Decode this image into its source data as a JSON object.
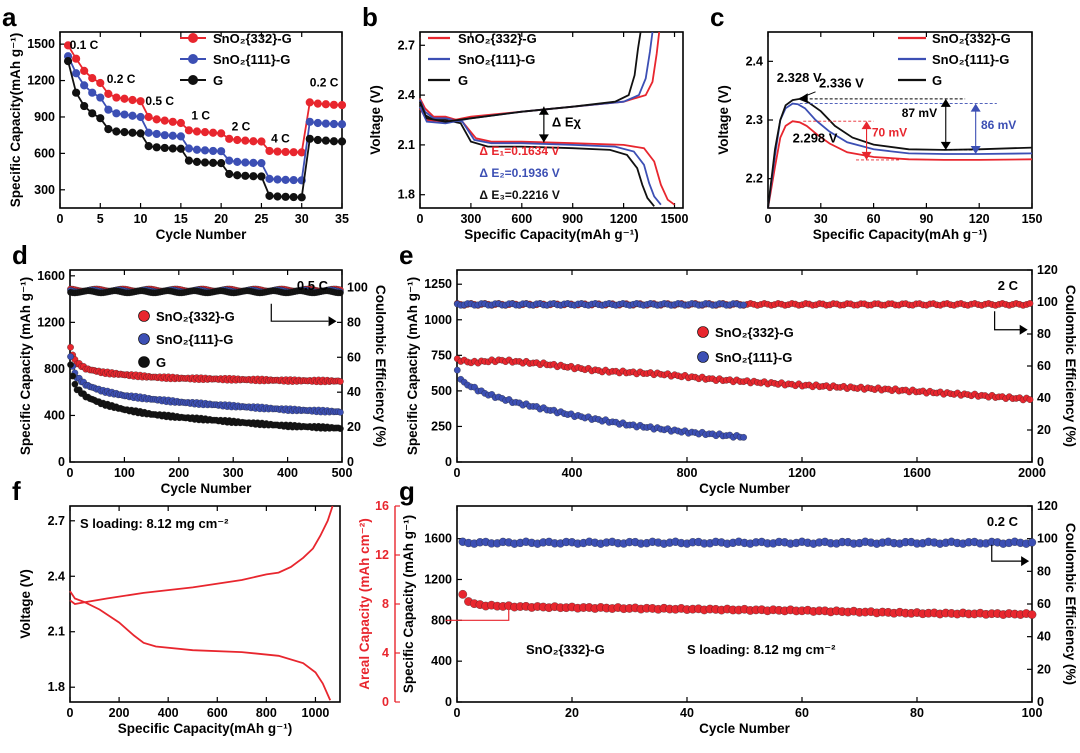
{
  "colors": {
    "red": "#e8262e",
    "blue": "#3c4fb4",
    "black": "#111111"
  },
  "chart_data": [
    {
      "id": "a",
      "type": "line",
      "letter": "a",
      "xlabel": "Cycle Number",
      "ylabel": "Specific Capacity(mAh g⁻¹)",
      "xlim": [
        0,
        35
      ],
      "ylim": [
        150,
        1600
      ],
      "xticks": [
        0,
        5,
        10,
        15,
        20,
        25,
        30,
        35
      ],
      "yticks": [
        300,
        600,
        900,
        1200,
        1500
      ],
      "legend": [
        "SnO₂{332}-G",
        "SnO₂{111}-G",
        "G"
      ],
      "rate_labels": [
        {
          "text": "0.1 C",
          "x": 1.2,
          "y": 1460
        },
        {
          "text": "0.2 C",
          "x": 5.8,
          "y": 1180
        },
        {
          "text": "0.5 C",
          "x": 10.6,
          "y": 1000
        },
        {
          "text": "1 C",
          "x": 16.3,
          "y": 880
        },
        {
          "text": "2 C",
          "x": 21.3,
          "y": 790
        },
        {
          "text": "4 C",
          "x": 26.2,
          "y": 690
        },
        {
          "text": "0.2 C",
          "x": 31.0,
          "y": 1150
        }
      ],
      "series": [
        {
          "name": "SnO₂{332}-G",
          "color": "red",
          "values": [
            1490,
            1380,
            1280,
            1220,
            1180,
            1090,
            1060,
            1050,
            1040,
            1030,
            900,
            880,
            870,
            860,
            850,
            790,
            780,
            775,
            770,
            765,
            720,
            710,
            705,
            700,
            698,
            620,
            615,
            612,
            610,
            608,
            1020,
            1010,
            1005,
            1000,
            998
          ]
        },
        {
          "name": "SnO₂{111}-G",
          "color": "blue",
          "values": [
            1400,
            1260,
            1160,
            1100,
            1060,
            960,
            930,
            920,
            910,
            900,
            770,
            760,
            750,
            745,
            740,
            640,
            630,
            625,
            620,
            618,
            540,
            530,
            525,
            522,
            520,
            390,
            385,
            382,
            380,
            378,
            860,
            850,
            845,
            842,
            840
          ]
        },
        {
          "name": "G",
          "color": "black",
          "values": [
            1360,
            1100,
            990,
            930,
            890,
            800,
            780,
            775,
            770,
            765,
            660,
            650,
            645,
            640,
            638,
            540,
            530,
            525,
            522,
            520,
            430,
            420,
            415,
            412,
            410,
            250,
            245,
            242,
            240,
            238,
            720,
            710,
            705,
            700,
            698
          ]
        }
      ]
    },
    {
      "id": "b",
      "type": "line",
      "letter": "b",
      "xlabel": "Specific Capacity(mAh g⁻¹)",
      "ylabel": "Voltage (V)",
      "xlim": [
        0,
        1550
      ],
      "ylim": [
        1.72,
        2.78
      ],
      "xticks": [
        0,
        300,
        600,
        900,
        1200,
        1500
      ],
      "yticks": [
        1.8,
        2.1,
        2.4,
        2.7
      ],
      "legend": [
        "SnO₂{332}-G",
        "SnO₂{111}-G",
        "G"
      ],
      "delta_label": "Δ Eχ",
      "annotations": [
        {
          "text": "Δ E₁=0.1634 V",
          "color": "red"
        },
        {
          "text": "Δ E₂=0.1936 V",
          "color": "blue"
        },
        {
          "text": "Δ E₃=0.2216 V",
          "color": "black"
        }
      ],
      "series": [
        {
          "name": "SnO₂{332}-G",
          "color": "red",
          "curve": "discharge",
          "x": [
            0,
            30,
            80,
            150,
            250,
            330,
            420,
            600,
            900,
            1200,
            1320,
            1380,
            1420,
            1460,
            1500
          ],
          "y": [
            2.38,
            2.32,
            2.27,
            2.27,
            2.24,
            2.14,
            2.12,
            2.12,
            2.11,
            2.1,
            2.08,
            2.0,
            1.86,
            1.77,
            1.74
          ]
        },
        {
          "name": "SnO₂{111}-G",
          "color": "blue",
          "curve": "discharge",
          "x": [
            0,
            30,
            80,
            150,
            250,
            320,
            420,
            600,
            900,
            1150,
            1260,
            1320,
            1350,
            1380,
            1420
          ],
          "y": [
            2.37,
            2.3,
            2.26,
            2.26,
            2.24,
            2.13,
            2.11,
            2.11,
            2.1,
            2.09,
            2.06,
            1.98,
            1.87,
            1.79,
            1.74
          ]
        },
        {
          "name": "G",
          "color": "black",
          "curve": "discharge",
          "x": [
            0,
            30,
            80,
            150,
            240,
            300,
            400,
            600,
            900,
            1120,
            1220,
            1280,
            1310,
            1340,
            1380
          ],
          "y": [
            2.36,
            2.28,
            2.25,
            2.25,
            2.23,
            2.12,
            2.09,
            2.09,
            2.08,
            2.07,
            2.04,
            1.96,
            1.86,
            1.78,
            1.73
          ]
        },
        {
          "name": "SnO₂{332}-G",
          "color": "red",
          "curve": "charge",
          "x": [
            0,
            40,
            150,
            300,
            600,
            900,
            1200,
            1330,
            1370,
            1395,
            1410
          ],
          "y": [
            2.32,
            2.25,
            2.24,
            2.27,
            2.3,
            2.33,
            2.36,
            2.4,
            2.48,
            2.65,
            2.78
          ]
        },
        {
          "name": "SnO₂{111}-G",
          "color": "blue",
          "curve": "charge",
          "x": [
            0,
            40,
            150,
            300,
            600,
            900,
            1200,
            1290,
            1330,
            1355,
            1370
          ],
          "y": [
            2.33,
            2.24,
            2.23,
            2.26,
            2.3,
            2.33,
            2.36,
            2.4,
            2.5,
            2.66,
            2.78
          ]
        },
        {
          "name": "G",
          "color": "black",
          "curve": "charge",
          "x": [
            0,
            40,
            150,
            300,
            600,
            900,
            1150,
            1230,
            1265,
            1285,
            1300
          ],
          "y": [
            2.36,
            2.26,
            2.24,
            2.26,
            2.3,
            2.33,
            2.36,
            2.4,
            2.52,
            2.68,
            2.78
          ]
        }
      ]
    },
    {
      "id": "c",
      "type": "line",
      "letter": "c",
      "xlabel": "Specific Capacity(mAh g⁻¹)",
      "ylabel": "Voltage (V)",
      "xlim": [
        0,
        150
      ],
      "ylim": [
        2.15,
        2.45
      ],
      "xticks": [
        0,
        30,
        60,
        90,
        120,
        150
      ],
      "yticks": [
        2.2,
        2.3,
        2.4
      ],
      "legend": [
        "SnO₂{332}-G",
        "SnO₂{111}-G",
        "G"
      ],
      "labels": {
        "blue_peak": "2.328 V",
        "black_peak": "2.336 V",
        "red_peak": "2.298 V",
        "mv87": "87 mV",
        "mv86": "86 mV",
        "mv70": "70 mV"
      },
      "series": [
        {
          "name": "SnO₂{332}-G",
          "color": "red",
          "x": [
            0,
            4,
            7,
            10,
            14,
            18,
            22,
            28,
            35,
            45,
            60,
            80,
            100,
            120,
            150
          ],
          "y": [
            2.15,
            2.22,
            2.27,
            2.29,
            2.298,
            2.296,
            2.29,
            2.275,
            2.26,
            2.245,
            2.237,
            2.233,
            2.232,
            2.232,
            2.233
          ]
        },
        {
          "name": "SnO₂{111}-G",
          "color": "blue",
          "x": [
            0,
            4,
            7,
            10,
            14,
            17,
            21,
            27,
            35,
            45,
            60,
            80,
            100,
            120,
            150
          ],
          "y": [
            2.15,
            2.24,
            2.3,
            2.32,
            2.328,
            2.327,
            2.32,
            2.3,
            2.28,
            2.262,
            2.25,
            2.243,
            2.242,
            2.242,
            2.243
          ]
        },
        {
          "name": "G",
          "color": "black",
          "x": [
            0,
            4,
            7,
            10,
            14,
            18,
            23,
            30,
            38,
            48,
            60,
            80,
            100,
            120,
            150
          ],
          "y": [
            2.15,
            2.25,
            2.3,
            2.325,
            2.334,
            2.336,
            2.33,
            2.315,
            2.29,
            2.27,
            2.258,
            2.25,
            2.249,
            2.25,
            2.253
          ]
        }
      ]
    },
    {
      "id": "d",
      "type": "scatter",
      "letter": "d",
      "xlabel": "Cycle Number",
      "ylabel": "Specific Capacity (mAh g⁻¹)",
      "y2label": "Coulombic Efficiency (%)",
      "xlim": [
        0,
        500
      ],
      "ylim": [
        0,
        1650
      ],
      "y2lim": [
        0,
        110
      ],
      "xticks": [
        0,
        100,
        200,
        300,
        400,
        500
      ],
      "yticks": [
        0,
        400,
        800,
        1200,
        1600
      ],
      "y2ticks": [
        0,
        20,
        40,
        60,
        80,
        100
      ],
      "rate": "0.5 C",
      "legend": [
        "SnO₂{332}-G",
        "SnO₂{111}-G",
        "G"
      ],
      "series": [
        {
          "name": "SnO₂{332}-G",
          "color": "red",
          "x": [
            1,
            10,
            30,
            60,
            100,
            150,
            200,
            300,
            400,
            500
          ],
          "y": [
            980,
            860,
            800,
            770,
            750,
            730,
            720,
            710,
            700,
            695
          ]
        },
        {
          "name": "SnO₂{111}-G",
          "color": "blue",
          "x": [
            1,
            10,
            30,
            60,
            100,
            150,
            200,
            300,
            400,
            500
          ],
          "y": [
            900,
            740,
            660,
            610,
            570,
            540,
            515,
            480,
            450,
            430
          ]
        },
        {
          "name": "G",
          "color": "black",
          "x": [
            1,
            10,
            30,
            60,
            100,
            150,
            200,
            300,
            400,
            500
          ],
          "y": [
            830,
            640,
            560,
            500,
            450,
            410,
            385,
            345,
            310,
            290
          ]
        }
      ],
      "efficiency": [
        {
          "color": "red",
          "value": 98.5
        },
        {
          "color": "blue",
          "value": 98.0
        },
        {
          "color": "black",
          "value": 97.5
        }
      ]
    },
    {
      "id": "e",
      "type": "scatter",
      "letter": "e",
      "xlabel": "Cycle Number",
      "ylabel": "Specific Capacity (mAh g⁻¹)",
      "y2label": "Coulombic Efficiency (%)",
      "xlim": [
        0,
        2000
      ],
      "ylim": [
        0,
        1350
      ],
      "y2lim": [
        0,
        120
      ],
      "xticks": [
        0,
        400,
        800,
        1200,
        1600,
        2000
      ],
      "yticks": [
        0,
        250,
        500,
        750,
        1000,
        1250
      ],
      "y2ticks": [
        0,
        20,
        40,
        60,
        80,
        100,
        120
      ],
      "rate": "2 C",
      "legend": [
        "SnO₂{332}-G",
        "SnO₂{111}-G"
      ],
      "series": [
        {
          "name": "SnO₂{332}-G",
          "color": "red",
          "x": [
            1,
            50,
            150,
            300,
            500,
            700,
            900,
            1200,
            1500,
            1800,
            2000
          ],
          "y": [
            720,
            700,
            715,
            690,
            640,
            620,
            580,
            540,
            510,
            470,
            440
          ]
        },
        {
          "name": "SnO₂{111}-G",
          "color": "blue",
          "x": [
            1,
            20,
            100,
            200,
            400,
            600,
            800,
            1000
          ],
          "y": [
            640,
            560,
            480,
            420,
            330,
            260,
            210,
            175
          ]
        }
      ],
      "efficiency": [
        {
          "color": "red",
          "x_end": 2000,
          "value": 98.5
        },
        {
          "color": "blue",
          "x_end": 1000,
          "value": 98.5
        }
      ]
    },
    {
      "id": "f",
      "type": "line",
      "letter": "f",
      "xlabel": "Specific Capacity(mAh g⁻¹)",
      "ylabel": "Voltage (V)",
      "xlim": [
        0,
        1100
      ],
      "ylim": [
        1.72,
        2.78
      ],
      "xticks": [
        0,
        200,
        400,
        600,
        800,
        1000
      ],
      "yticks": [
        1.8,
        2.1,
        2.4,
        2.7
      ],
      "loading": "S loading: 8.12 mg cm⁻²",
      "series": [
        {
          "name": "discharge",
          "color": "red",
          "x": [
            0,
            20,
            60,
            120,
            200,
            260,
            300,
            350,
            500,
            700,
            850,
            950,
            1000,
            1030,
            1060
          ],
          "y": [
            2.32,
            2.28,
            2.26,
            2.22,
            2.15,
            2.08,
            2.04,
            2.02,
            2.0,
            1.99,
            1.97,
            1.93,
            1.88,
            1.82,
            1.73
          ]
        },
        {
          "name": "charge",
          "color": "red",
          "x": [
            0,
            20,
            60,
            150,
            300,
            500,
            700,
            800,
            850,
            900,
            950,
            990,
            1020,
            1050,
            1070
          ],
          "y": [
            2.27,
            2.25,
            2.26,
            2.28,
            2.31,
            2.34,
            2.38,
            2.41,
            2.42,
            2.45,
            2.5,
            2.55,
            2.62,
            2.7,
            2.78
          ]
        }
      ]
    },
    {
      "id": "g",
      "type": "scatter",
      "letter": "g",
      "xlabel": "Cycle Number",
      "ylabel": "Specific Capacity (mAh g⁻¹)",
      "y0label": "Areal Capacity (mAh cm⁻²)",
      "y2label": "Coulombic Efficiency (%)",
      "xlim": [
        0,
        100
      ],
      "ylim": [
        0,
        1920
      ],
      "y0lim": [
        0,
        16
      ],
      "y2lim": [
        0,
        120
      ],
      "xticks": [
        0,
        20,
        40,
        60,
        80,
        100
      ],
      "yticks": [
        0,
        400,
        800,
        1200,
        1600
      ],
      "y0ticks": [
        0,
        4,
        8,
        12,
        16
      ],
      "y2ticks": [
        0,
        20,
        40,
        60,
        80,
        100,
        120
      ],
      "rate": "0.2 C",
      "sample": "SnO₂{332}-G",
      "loading": "S loading: 8.12 mg cm⁻²",
      "series": [
        {
          "name": "SnO₂{332}-G",
          "color": "red",
          "x": [
            1,
            2,
            3,
            5,
            10,
            20,
            40,
            60,
            80,
            100
          ],
          "y": [
            1050,
            990,
            960,
            945,
            935,
            925,
            910,
            895,
            870,
            860
          ]
        }
      ],
      "efficiency": [
        {
          "color": "blue",
          "x_end": 100,
          "value": 97.5
        }
      ]
    }
  ]
}
